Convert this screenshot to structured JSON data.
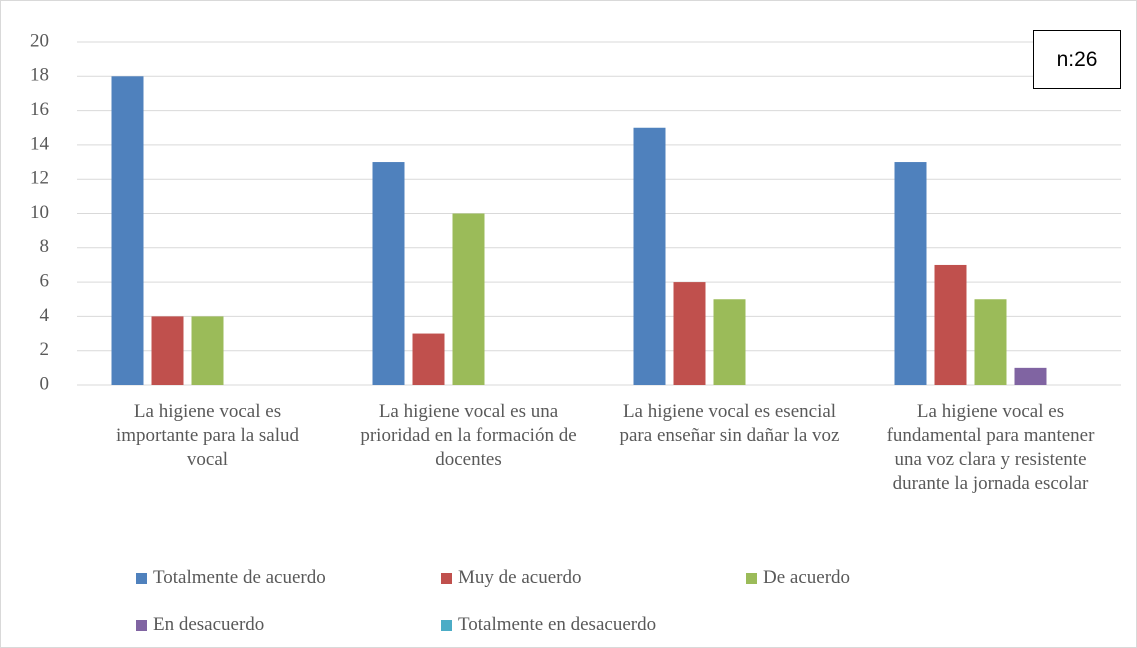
{
  "chart_data": {
    "type": "bar",
    "annotation": "n:26",
    "categories": [
      "La higiene vocal es importante para la salud vocal",
      "La higiene vocal es una prioridad en la formación de docentes",
      "La higiene vocal es esencial para enseñar sin dañar la voz",
      "La higiene vocal es fundamental para mantener una voz clara y resistente durante la jornada escolar"
    ],
    "series": [
      {
        "name": "Totalmente de acuerdo",
        "color": "#4f81bd",
        "values": [
          18,
          13,
          15,
          13
        ]
      },
      {
        "name": "Muy de acuerdo",
        "color": "#c0504d",
        "values": [
          4,
          3,
          6,
          7
        ]
      },
      {
        "name": "De acuerdo",
        "color": "#9bbb59",
        "values": [
          4,
          10,
          5,
          5
        ]
      },
      {
        "name": "En desacuerdo",
        "color": "#8064a2",
        "values": [
          0,
          0,
          0,
          1
        ]
      },
      {
        "name": "Totalmente en desacuerdo",
        "color": "#4bacc6",
        "values": [
          0,
          0,
          0,
          0
        ]
      }
    ],
    "ylim": [
      0,
      20
    ],
    "yticks": [
      0,
      2,
      4,
      6,
      8,
      10,
      12,
      14,
      16,
      18,
      20
    ],
    "grid": true,
    "legend": "bottom"
  }
}
